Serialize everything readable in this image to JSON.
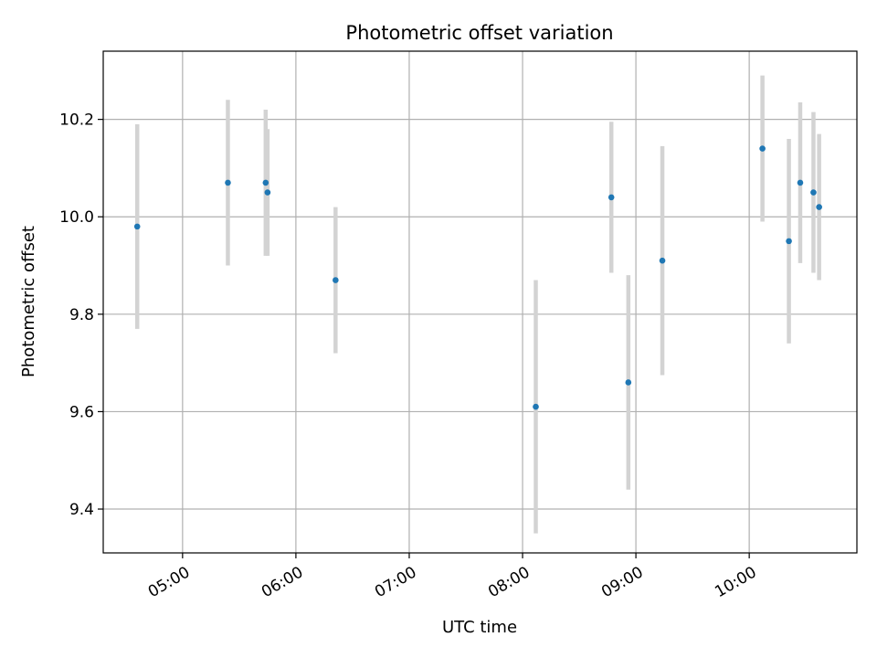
{
  "chart_data": {
    "type": "scatter",
    "title": "Photometric offset variation",
    "xlabel": "UTC time",
    "ylabel": "Photometric offset",
    "xlim": [
      "04:18",
      "10:57"
    ],
    "ylim": [
      9.31,
      10.34
    ],
    "grid": true,
    "x_ticks": [
      "05:00",
      "06:00",
      "07:00",
      "08:00",
      "09:00",
      "10:00"
    ],
    "y_ticks": [
      9.4,
      9.6,
      9.8,
      10.0,
      10.2
    ],
    "y_tick_labels": [
      "9.4",
      "9.6",
      "9.8",
      "10.0",
      "10.2"
    ],
    "colors": {
      "point": "#1f77b4",
      "errorbar": "#d3d3d3",
      "grid": "#b0b0b0"
    },
    "series": [
      {
        "points": [
          {
            "x": "04:36",
            "y": 9.98,
            "err": 0.21
          },
          {
            "x": "05:24",
            "y": 10.07,
            "err": 0.17
          },
          {
            "x": "05:44",
            "y": 10.07,
            "err": 0.15
          },
          {
            "x": "05:45",
            "y": 10.05,
            "err": 0.13
          },
          {
            "x": "06:21",
            "y": 9.87,
            "err": 0.15
          },
          {
            "x": "08:07",
            "y": 9.61,
            "err": 0.26
          },
          {
            "x": "08:47",
            "y": 10.04,
            "err": 0.155
          },
          {
            "x": "08:56",
            "y": 9.66,
            "err": 0.22
          },
          {
            "x": "09:14",
            "y": 9.91,
            "err": 0.235
          },
          {
            "x": "10:07",
            "y": 10.14,
            "err": 0.15
          },
          {
            "x": "10:21",
            "y": 9.95,
            "err": 0.21
          },
          {
            "x": "10:27",
            "y": 10.07,
            "err": 0.165
          },
          {
            "x": "10:34",
            "y": 10.05,
            "err": 0.165
          },
          {
            "x": "10:37",
            "y": 10.02,
            "err": 0.15
          }
        ]
      }
    ]
  }
}
